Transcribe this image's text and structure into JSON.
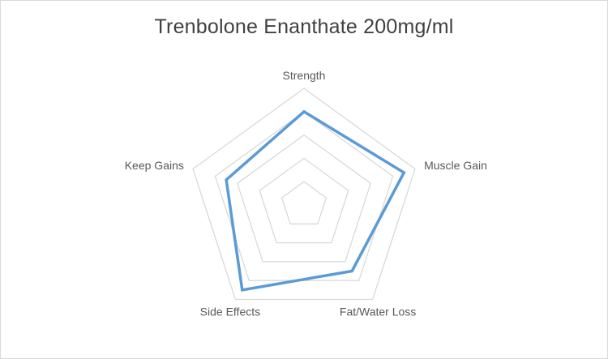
{
  "chart_data": {
    "type": "radar",
    "title": "Trenbolone Enanthate 200mg/ml",
    "categories": [
      "Strength",
      "Muscle Gain",
      "Fat/Water Loss",
      "Side Effects",
      "Keep Gains"
    ],
    "series": [
      {
        "values": [
          8,
          9,
          7,
          9,
          7
        ]
      }
    ],
    "rlim": [
      0,
      10
    ],
    "rings": 5,
    "grid": true,
    "legend": "none",
    "colors": {
      "series": "#5b9bd5",
      "grid": "#d9d9d9",
      "label": "#595959",
      "title": "#404040",
      "border": "#d9d9d9"
    }
  }
}
